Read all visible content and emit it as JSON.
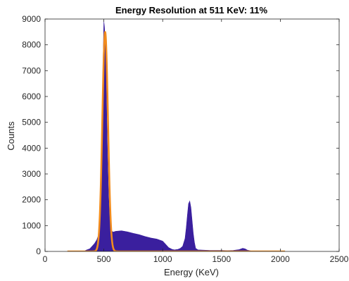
{
  "chart_data": {
    "type": "area",
    "title": "Energy Resolution at 511 KeV: 11%",
    "xlabel": "Energy (KeV)",
    "ylabel": "Counts",
    "xlim": [
      0,
      2500
    ],
    "ylim": [
      0,
      9000
    ],
    "xticks": [
      "0",
      "500",
      "1000",
      "1500",
      "2000",
      "2500"
    ],
    "yticks": [
      "0",
      "1000",
      "2000",
      "3000",
      "4000",
      "5000",
      "6000",
      "7000",
      "8000",
      "9000"
    ],
    "grid": false,
    "series": [
      {
        "kind": "histogram",
        "color": "#3a1f9e",
        "x": [
          330,
          350,
          380,
          400,
          420,
          440,
          460,
          470,
          480,
          490,
          500,
          505,
          510,
          515,
          520,
          530,
          540,
          550,
          560,
          580,
          600,
          650,
          700,
          750,
          800,
          850,
          900,
          950,
          1000,
          1020,
          1050,
          1080,
          1100,
          1130,
          1150,
          1170,
          1190,
          1200,
          1210,
          1220,
          1230,
          1240,
          1250,
          1260,
          1270,
          1280,
          1300,
          1350,
          1400,
          1500,
          1550,
          1600,
          1650,
          1680,
          1700,
          1720,
          1750,
          1800,
          1900,
          2000
        ],
        "y": [
          0,
          50,
          100,
          200,
          300,
          450,
          700,
          1500,
          3000,
          6500,
          8900,
          8700,
          8300,
          7800,
          6500,
          4000,
          2200,
          1200,
          800,
          750,
          780,
          800,
          760,
          700,
          650,
          580,
          520,
          480,
          400,
          300,
          150,
          80,
          60,
          80,
          120,
          200,
          500,
          900,
          1400,
          1850,
          1950,
          1700,
          1200,
          700,
          350,
          120,
          60,
          50,
          40,
          40,
          30,
          40,
          70,
          120,
          100,
          50,
          20,
          20,
          10,
          0
        ]
      },
      {
        "kind": "gaussian_fit",
        "color": "#f28c1e",
        "peak": 8500,
        "center": 511,
        "fwhm": 56,
        "x_range": [
          190,
          2040
        ]
      }
    ]
  }
}
